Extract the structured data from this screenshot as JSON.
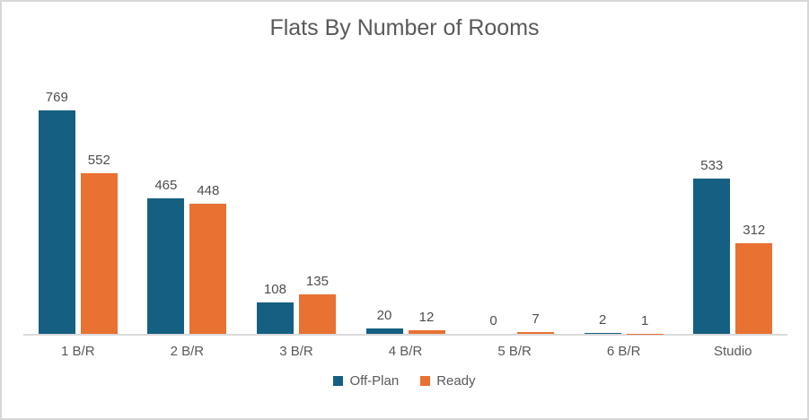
{
  "chart_data": {
    "type": "bar",
    "title": "Flats By Number of Rooms",
    "categories": [
      "1 B/R",
      "2 B/R",
      "3 B/R",
      "4 B/R",
      "5 B/R",
      "6 B/R",
      "Studio"
    ],
    "series": [
      {
        "name": "Off-Plan",
        "color": "#156082",
        "values": [
          769,
          465,
          108,
          20,
          0,
          2,
          533
        ]
      },
      {
        "name": "Ready",
        "color": "#E97132",
        "values": [
          552,
          448,
          135,
          12,
          7,
          1,
          312
        ]
      }
    ],
    "xlabel": "",
    "ylabel": "",
    "ylim": [
      0,
      800
    ],
    "grid": false,
    "legend_position": "bottom",
    "data_labels": "outside-end"
  }
}
